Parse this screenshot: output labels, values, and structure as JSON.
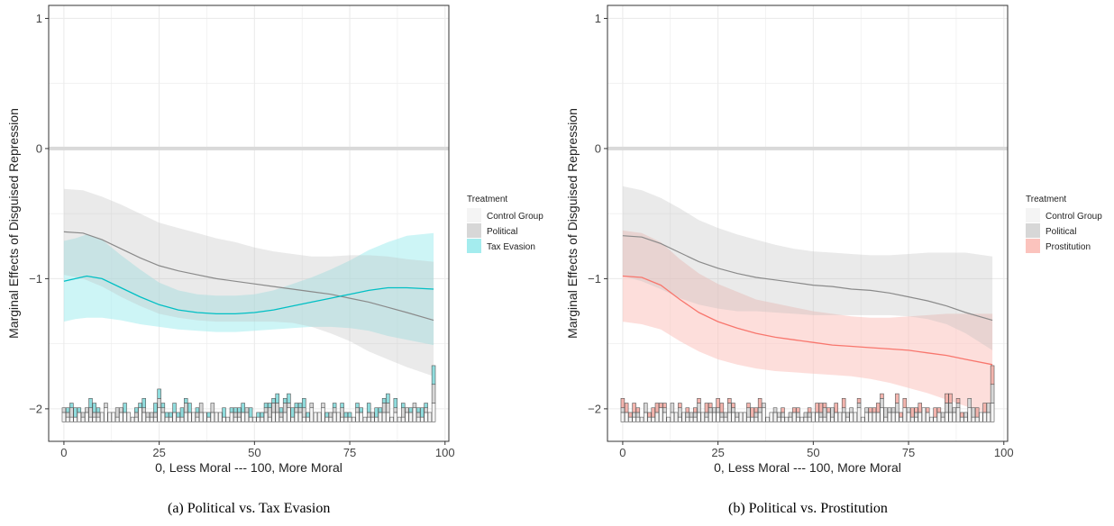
{
  "panels": [
    {
      "caption": "(a)  Political vs. Tax Evasion",
      "chart_data": {
        "type": "line",
        "title": "",
        "xlabel": "0, Less Moral --- 100, More Moral",
        "ylabel": "Marginal Effects of Disguised Repression",
        "xlim": [
          -4,
          101
        ],
        "ylim": [
          -2.25,
          1.1
        ],
        "xticks": [
          "0",
          "25",
          "50",
          "75",
          "100"
        ],
        "yticks": [
          "−2",
          "−1",
          "0",
          "1"
        ],
        "xtick_values": [
          0,
          25,
          50,
          75,
          100
        ],
        "ytick_values": [
          -2,
          -1,
          0,
          1
        ],
        "grid": true,
        "reference_line": 0,
        "legend": {
          "title": "Treatment",
          "position": "right",
          "entries": [
            "Control Group",
            "Political",
            "Tax Evasion"
          ]
        },
        "series": [
          {
            "name": "Political",
            "x": [
              0,
              5,
              10,
              15,
              20,
              25,
              30,
              35,
              40,
              45,
              50,
              55,
              60,
              65,
              70,
              75,
              80,
              85,
              90,
              97
            ],
            "y": [
              -0.64,
              -0.65,
              -0.7,
              -0.77,
              -0.84,
              -0.9,
              -0.94,
              -0.97,
              -1.0,
              -1.02,
              -1.04,
              -1.06,
              -1.08,
              -1.1,
              -1.12,
              -1.15,
              -1.18,
              -1.22,
              -1.26,
              -1.32
            ],
            "lower": [
              -0.97,
              -1.0,
              -1.06,
              -1.14,
              -1.21,
              -1.27,
              -1.3,
              -1.32,
              -1.33,
              -1.33,
              -1.33,
              -1.33,
              -1.34,
              -1.37,
              -1.42,
              -1.48,
              -1.56,
              -1.62,
              -1.68,
              -1.75
            ],
            "upper": [
              -0.31,
              -0.32,
              -0.37,
              -0.43,
              -0.5,
              -0.57,
              -0.61,
              -0.65,
              -0.69,
              -0.72,
              -0.76,
              -0.79,
              -0.81,
              -0.83,
              -0.83,
              -0.82,
              -0.82,
              -0.83,
              -0.85,
              -0.87
            ]
          },
          {
            "name": "Tax Evasion",
            "x": [
              0,
              3,
              6,
              10,
              15,
              20,
              25,
              30,
              35,
              40,
              45,
              50,
              55,
              60,
              65,
              70,
              75,
              80,
              85,
              90,
              97
            ],
            "y": [
              -1.02,
              -1.0,
              -0.98,
              -1.0,
              -1.07,
              -1.14,
              -1.2,
              -1.24,
              -1.26,
              -1.27,
              -1.27,
              -1.26,
              -1.24,
              -1.21,
              -1.18,
              -1.15,
              -1.12,
              -1.09,
              -1.07,
              -1.07,
              -1.08
            ],
            "lower": [
              -1.33,
              -1.31,
              -1.3,
              -1.3,
              -1.32,
              -1.35,
              -1.37,
              -1.39,
              -1.4,
              -1.41,
              -1.41,
              -1.4,
              -1.39,
              -1.38,
              -1.37,
              -1.37,
              -1.38,
              -1.4,
              -1.44,
              -1.47,
              -1.51
            ],
            "upper": [
              -0.71,
              -0.69,
              -0.66,
              -0.7,
              -0.82,
              -0.93,
              -1.03,
              -1.09,
              -1.12,
              -1.13,
              -1.13,
              -1.12,
              -1.09,
              -1.04,
              -0.99,
              -0.93,
              -0.86,
              -0.78,
              -0.72,
              -0.67,
              -0.65
            ]
          }
        ]
      }
    },
    {
      "caption": "(b)  Political vs. Prostitution",
      "chart_data": {
        "type": "line",
        "title": "",
        "xlabel": "0, Less Moral --- 100, More Moral",
        "ylabel": "Marginal Effects of Disguised Repression",
        "xlim": [
          -4,
          101
        ],
        "ylim": [
          -2.25,
          1.1
        ],
        "xticks": [
          "0",
          "25",
          "50",
          "75",
          "100"
        ],
        "yticks": [
          "−2",
          "−1",
          "0",
          "1"
        ],
        "xtick_values": [
          0,
          25,
          50,
          75,
          100
        ],
        "ytick_values": [
          -2,
          -1,
          0,
          1
        ],
        "grid": true,
        "reference_line": 0,
        "legend": {
          "title": "Treatment",
          "position": "right",
          "entries": [
            "Control Group",
            "Political",
            "Prostitution"
          ]
        },
        "series": [
          {
            "name": "Political",
            "x": [
              0,
              5,
              10,
              15,
              20,
              25,
              30,
              35,
              40,
              45,
              50,
              55,
              60,
              65,
              70,
              75,
              80,
              85,
              90,
              97
            ],
            "y": [
              -0.67,
              -0.68,
              -0.73,
              -0.8,
              -0.87,
              -0.92,
              -0.96,
              -0.99,
              -1.01,
              -1.03,
              -1.05,
              -1.06,
              -1.08,
              -1.09,
              -1.11,
              -1.14,
              -1.17,
              -1.21,
              -1.26,
              -1.32
            ],
            "lower": [
              -0.98,
              -1.02,
              -1.08,
              -1.15,
              -1.2,
              -1.23,
              -1.25,
              -1.25,
              -1.26,
              -1.27,
              -1.28,
              -1.28,
              -1.28,
              -1.28,
              -1.28,
              -1.29,
              -1.31,
              -1.35,
              -1.42,
              -1.55
            ],
            "upper": [
              -0.29,
              -0.32,
              -0.38,
              -0.46,
              -0.55,
              -0.61,
              -0.66,
              -0.7,
              -0.74,
              -0.77,
              -0.79,
              -0.8,
              -0.81,
              -0.82,
              -0.82,
              -0.81,
              -0.8,
              -0.8,
              -0.8,
              -0.83
            ]
          },
          {
            "name": "Prostitution",
            "x": [
              0,
              5,
              10,
              15,
              20,
              25,
              30,
              35,
              40,
              45,
              50,
              55,
              60,
              65,
              70,
              75,
              80,
              85,
              90,
              97
            ],
            "y": [
              -0.98,
              -0.99,
              -1.05,
              -1.16,
              -1.26,
              -1.33,
              -1.38,
              -1.42,
              -1.45,
              -1.47,
              -1.49,
              -1.51,
              -1.52,
              -1.53,
              -1.54,
              -1.55,
              -1.57,
              -1.59,
              -1.62,
              -1.66
            ],
            "lower": [
              -1.33,
              -1.35,
              -1.39,
              -1.48,
              -1.56,
              -1.62,
              -1.66,
              -1.69,
              -1.71,
              -1.72,
              -1.73,
              -1.74,
              -1.75,
              -1.77,
              -1.8,
              -1.84,
              -1.88,
              -1.93,
              -1.98,
              -2.05
            ],
            "upper": [
              -0.63,
              -0.65,
              -0.72,
              -0.85,
              -0.96,
              -1.04,
              -1.1,
              -1.16,
              -1.19,
              -1.22,
              -1.25,
              -1.27,
              -1.29,
              -1.3,
              -1.3,
              -1.29,
              -1.28,
              -1.27,
              -1.27,
              -1.27
            ]
          }
        ]
      }
    }
  ],
  "style": {
    "control_fill": "#f4f4f4",
    "political_fill": "#d7d7d7",
    "political_line": "#8a8a8a",
    "political_band": "#bdbdbd",
    "tax_color": "#00bfc4",
    "tax_band": "#a4ecee",
    "tax_fill": "#8fdcdd",
    "prost_color": "#f8766d",
    "prost_band": "#fbc3bd",
    "prost_fill": "#f3b4ad",
    "ref_line": "#d9d9d9",
    "grid": "#ebebeb"
  }
}
